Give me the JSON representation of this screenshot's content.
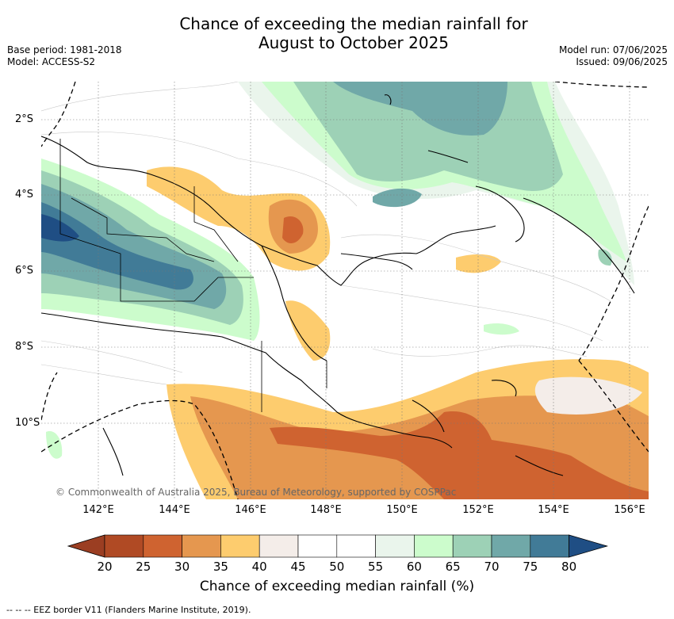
{
  "title": {
    "line1": "Chance of exceeding the median rainfall for",
    "line2": "August to October 2025"
  },
  "meta": {
    "base_period": "Base period: 1981-2018",
    "model": "Model: ACCESS-S2",
    "model_run": "Model run: 07/06/2025",
    "issued": "Issued: 09/06/2025"
  },
  "map": {
    "y_ticks": [
      "2°S",
      "4°S",
      "6°S",
      "8°S",
      "10°S"
    ],
    "x_ticks": [
      "142°E",
      "144°E",
      "146°E",
      "148°E",
      "150°E",
      "152°E",
      "154°E",
      "156°E"
    ],
    "copyright": "© Commonwealth of Australia 2025, Bureau of Meteorology, supported by COSPPac"
  },
  "colorbar": {
    "ticks": [
      "20",
      "25",
      "30",
      "35",
      "40",
      "45",
      "50",
      "55",
      "60",
      "65",
      "70",
      "75",
      "80"
    ],
    "colors": [
      "#b04a24",
      "#cf6330",
      "#e5974f",
      "#fdcc6e",
      "#f4ede9",
      "#ffffff",
      "#ffffff",
      "#eaf5ec",
      "#ccfccc",
      "#9dd1b6",
      "#70a8a8",
      "#417b97"
    ],
    "under_color": "#9b3e22",
    "over_color": "#1f4e84",
    "label": "Chance of exceeding median rainfall (%)"
  },
  "footer": "--  --  -- EEZ border V11 (Flanders Marine Institute, 2019)."
}
